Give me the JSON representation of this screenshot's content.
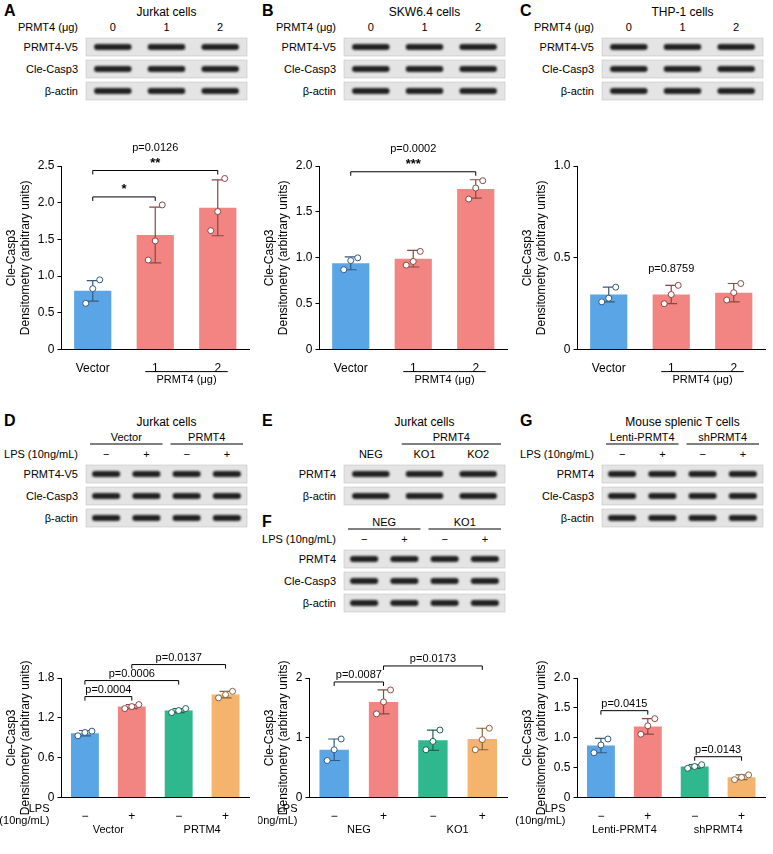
{
  "blots": [
    {
      "panel": "A",
      "title": "Jurkat cells",
      "header": [
        {
          "label": "PRMT4 (μg)",
          "cells": [
            "0",
            "1",
            "2"
          ]
        }
      ],
      "rows": [
        "PRMT4-V5",
        "Cle-Casp3",
        "β-actin"
      ]
    },
    {
      "panel": "B",
      "title": "SKW6.4 cells",
      "header": [
        {
          "label": "PRMT4 (μg)",
          "cells": [
            "0",
            "1",
            "2"
          ]
        }
      ],
      "rows": [
        "PRMT4-V5",
        "Cle-Casp3",
        "β-actin"
      ]
    },
    {
      "panel": "C",
      "title": "THP-1 cells",
      "header": [
        {
          "label": "PRMT4 (μg)",
          "cells": [
            "0",
            "1",
            "2"
          ]
        }
      ],
      "rows": [
        "PRMT4-V5",
        "Cle-Casp3",
        "β-actin"
      ]
    },
    {
      "panel": "D",
      "title": "Jurkat cells",
      "groups": [
        {
          "text": "Vector",
          "start": 0,
          "span": 2
        },
        {
          "text": "PRMT4",
          "start": 2,
          "span": 2
        }
      ],
      "header": [
        {
          "label": "LPS (10ng/mL)",
          "cells": [
            "−",
            "+",
            "−",
            "+"
          ]
        }
      ],
      "rows": [
        "PRMT4-V5",
        "Cle-Casp3",
        "β-actin"
      ]
    },
    {
      "panel": "E",
      "title": "Jurkat cells",
      "groups": [
        {
          "text": "PRMT4",
          "start": 1,
          "span": 2
        }
      ],
      "header": [
        {
          "cells": [
            "NEG",
            "KO1",
            "KO2"
          ]
        }
      ],
      "rows": [
        "PRMT4",
        "β-actin"
      ]
    },
    {
      "panel": "F",
      "groups": [
        {
          "text": "NEG",
          "start": 0,
          "span": 2
        },
        {
          "text": "KO1",
          "start": 2,
          "span": 2
        }
      ],
      "header": [
        {
          "label": "LPS (10ng/mL)",
          "cells": [
            "−",
            "+",
            "−",
            "+"
          ]
        }
      ],
      "rows": [
        "PRMT4",
        "Cle-Casp3",
        "β-actin"
      ]
    },
    {
      "panel": "G",
      "title": "Mouse splenic T cells",
      "groups": [
        {
          "text": "Lenti-PRMT4",
          "start": 0,
          "span": 2
        },
        {
          "text": "shPRMT4",
          "start": 2,
          "span": 2
        }
      ],
      "header": [
        {
          "label": "LPS (10ng/mL)",
          "cells": [
            "−",
            "+",
            "−",
            "+"
          ]
        }
      ],
      "rows": [
        "PRMT4",
        "Cle-Casp3",
        "β-actin"
      ]
    }
  ],
  "chart_data": [
    {
      "type": "bar",
      "y_label": [
        "Cle-Casp3",
        "Densitometry (arbitrary units)"
      ],
      "categories": [
        "Vector",
        "1",
        "2"
      ],
      "group_labels": [
        {
          "text": "PRMT4 (μg)",
          "from": 1,
          "to": 2
        }
      ],
      "values": [
        0.8,
        1.56,
        1.93
      ],
      "errors": [
        0.14,
        0.38,
        0.38
      ],
      "points": [
        [
          0.63,
          0.83,
          0.95
        ],
        [
          1.22,
          1.48,
          1.97
        ],
        [
          1.62,
          1.88,
          2.33
        ]
      ],
      "colors": [
        "#5aa5e6",
        "#f28582",
        "#f28582"
      ],
      "ylim": [
        0,
        2.5
      ],
      "yticks": [
        0,
        0.5,
        {
          "value": 1,
          "label": "1.0"
        },
        1.5,
        {
          "value": 2,
          "label": "2.0"
        },
        2.5
      ],
      "grid": false,
      "annotations": [
        {
          "text": "*",
          "from": 0,
          "to": 1
        },
        {
          "text": "**",
          "from": 0,
          "to": 2
        },
        {
          "text": "p=0.0126"
        }
      ]
    },
    {
      "type": "bar",
      "y_label": [
        "Cle-Casp3",
        "Densitometry (arbitrary units)"
      ],
      "categories": [
        "Vector",
        "1",
        "2"
      ],
      "group_labels": [
        {
          "text": "PRMT4 (μg)",
          "from": 1,
          "to": 2
        }
      ],
      "values": [
        0.94,
        0.99,
        1.75
      ],
      "errors": [
        0.07,
        0.09,
        0.1
      ],
      "points": [
        [
          0.87,
          0.97,
          1.0
        ],
        [
          0.92,
          0.96,
          1.07
        ],
        [
          1.64,
          1.76,
          1.84
        ]
      ],
      "colors": [
        "#5aa5e6",
        "#f28582",
        "#f28582"
      ],
      "ylim": [
        0,
        2
      ],
      "yticks": [
        0,
        0.5,
        {
          "value": 1,
          "label": "1.0"
        },
        1.5,
        {
          "value": 2,
          "label": "2.0"
        }
      ],
      "grid": false,
      "annotations": [
        {
          "text": "***",
          "from": 0,
          "to": 2
        },
        {
          "text": "p=0.0002"
        }
      ]
    },
    {
      "type": "bar",
      "y_label": [
        "Cle-Casp3",
        "Densitometry (arbitrary units)"
      ],
      "categories": [
        "Vector",
        "1",
        "2"
      ],
      "group_labels": [
        {
          "text": "PRMT4 (μg)",
          "from": 1,
          "to": 2
        }
      ],
      "values": [
        0.3,
        0.3,
        0.31
      ],
      "errors": [
        0.04,
        0.05,
        0.05
      ],
      "points": [
        [
          0.26,
          0.28,
          0.34
        ],
        [
          0.25,
          0.3,
          0.35
        ],
        [
          0.27,
          0.31,
          0.36
        ]
      ],
      "colors": [
        "#5aa5e6",
        "#f28582",
        "#f28582"
      ],
      "ylim": [
        0,
        1
      ],
      "yticks": [
        0,
        0.5,
        {
          "value": 1,
          "label": "1.0"
        }
      ],
      "grid": false,
      "annotations": [
        {
          "text": "p=0.8759"
        }
      ]
    },
    {
      "type": "bar",
      "y_label": [
        "Cle-Casp3",
        "Densitometry (arbitrary units)"
      ],
      "categories": [
        "−",
        "+",
        "−",
        "+"
      ],
      "row_label": [
        "LPS",
        "(10ng/mL)"
      ],
      "group_labels": [
        {
          "text": "Vector",
          "from": 0,
          "to": 1
        },
        {
          "text": "PRTM4",
          "from": 2,
          "to": 3
        }
      ],
      "values": [
        0.97,
        1.37,
        1.31,
        1.55
      ],
      "errors": [
        0.04,
        0.03,
        0.03,
        0.05
      ],
      "points": [
        [
          0.93,
          0.98,
          1.0
        ],
        [
          1.34,
          1.37,
          1.4
        ],
        [
          1.28,
          1.31,
          1.34
        ],
        [
          1.5,
          1.55,
          1.6
        ]
      ],
      "colors": [
        "#5aa5e6",
        "#f28582",
        "#2fb88e",
        "#f5b46e"
      ],
      "ylim": [
        0,
        1.8
      ],
      "yticks": [
        0,
        0.6,
        1.2,
        1.8
      ],
      "grid": false,
      "annotations": [
        {
          "text": "p=0.0004",
          "from": 0,
          "to": 1
        },
        {
          "text": "p=0.0006",
          "from": 0,
          "to": 2
        },
        {
          "text": "p=0.0137",
          "from": 1,
          "to": 3
        }
      ]
    },
    {
      "type": "bar",
      "y_label": [
        "Cle-Casp3",
        "Densitometry (arbitrary units)"
      ],
      "categories": [
        "−",
        "+",
        "−",
        "+"
      ],
      "row_label": [
        "LPS",
        "(10ng/mL)"
      ],
      "group_labels": [
        {
          "text": "NEG",
          "from": 0,
          "to": 1
        },
        {
          "text": "KO1",
          "from": 2,
          "to": 3
        }
      ],
      "values": [
        0.8,
        1.6,
        0.96,
        0.98
      ],
      "errors": [
        0.18,
        0.2,
        0.17,
        0.18
      ],
      "points": [
        [
          0.62,
          0.8,
          0.98
        ],
        [
          1.4,
          1.6,
          1.8
        ],
        [
          0.8,
          0.94,
          1.13
        ],
        [
          0.8,
          0.97,
          1.16
        ]
      ],
      "colors": [
        "#5aa5e6",
        "#f28582",
        "#2fb88e",
        "#f5b46e"
      ],
      "ylim": [
        0,
        2
      ],
      "yticks": [
        0,
        1,
        2
      ],
      "grid": false,
      "annotations": [
        {
          "text": "p=0.0087",
          "from": 0,
          "to": 1
        },
        {
          "text": "p=0.0173",
          "from": 1,
          "to": 3
        }
      ]
    },
    {
      "type": "bar",
      "y_label": [
        "Cle-Casp3",
        "Densitometry (arbitrary units)"
      ],
      "categories": [
        "−",
        "+",
        "−",
        "+"
      ],
      "row_label": [
        "LPS",
        "(10ng/mL)"
      ],
      "group_labels": [
        {
          "text": "Lenti-PRMT4",
          "from": 0,
          "to": 1
        },
        {
          "text": "shPRMT4",
          "from": 2,
          "to": 3
        }
      ],
      "values": [
        0.87,
        1.19,
        0.52,
        0.34
      ],
      "errors": [
        0.12,
        0.13,
        0.03,
        0.04
      ],
      "points": [
        [
          0.75,
          0.88,
          0.98
        ],
        [
          1.06,
          1.2,
          1.32
        ],
        [
          0.49,
          0.52,
          0.55
        ],
        [
          0.3,
          0.34,
          0.38
        ]
      ],
      "colors": [
        "#5aa5e6",
        "#f28582",
        "#2fb88e",
        "#f5b46e"
      ],
      "ylim": [
        0,
        2
      ],
      "yticks": [
        0,
        0.5,
        {
          "value": 1,
          "label": "1.0"
        },
        1.5,
        {
          "value": 2,
          "label": "2.0"
        }
      ],
      "grid": false,
      "annotations": [
        {
          "text": "p=0.0415",
          "from": 0,
          "to": 1
        },
        {
          "text": "p=0.0143",
          "from": 2,
          "to": 3
        }
      ]
    }
  ]
}
